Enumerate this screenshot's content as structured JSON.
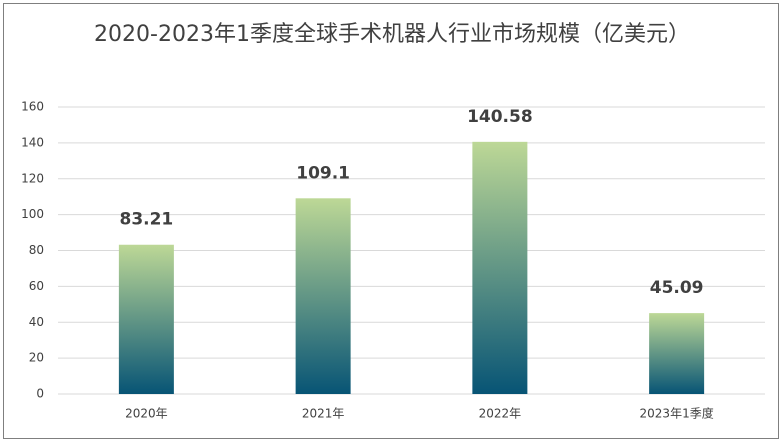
{
  "chart_data": {
    "type": "bar",
    "title": "2020-2023年1季度全球手术机器人行业市场规模（亿美元）",
    "categories": [
      "2020年",
      "2021年",
      "2022年",
      "2023年1季度"
    ],
    "values": [
      83.21,
      109.1,
      140.58,
      45.09
    ],
    "gradient": [
      "#bdd896",
      "#075475"
    ],
    "ylim": [
      0,
      160
    ],
    "yticks": [
      0,
      20,
      40,
      60,
      80,
      100,
      120,
      140,
      160
    ],
    "grid": true
  }
}
